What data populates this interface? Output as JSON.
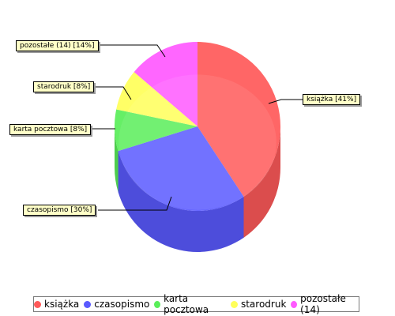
{
  "chart_data": {
    "type": "pie",
    "style": "3d-cylinder",
    "slices": [
      {
        "label": "książka",
        "callout": "książka [41%]",
        "value": 41,
        "color": "#ff5a5a"
      },
      {
        "label": "czasopismo",
        "callout": "czasopismo [30%]",
        "value": 30,
        "color": "#5a5aff"
      },
      {
        "label": "karta pocztowa",
        "callout": "karta pocztowa [8%]",
        "value": 8,
        "color": "#5aee5a"
      },
      {
        "label": "starodruk",
        "callout": "starodruk [8%]",
        "value": 8,
        "color": "#ffff5a"
      },
      {
        "label": "pozostałe (14)",
        "callout": "pozostałe (14) [14%]",
        "value": 14,
        "color": "#ff5aff"
      }
    ],
    "legend_position": "bottom"
  }
}
